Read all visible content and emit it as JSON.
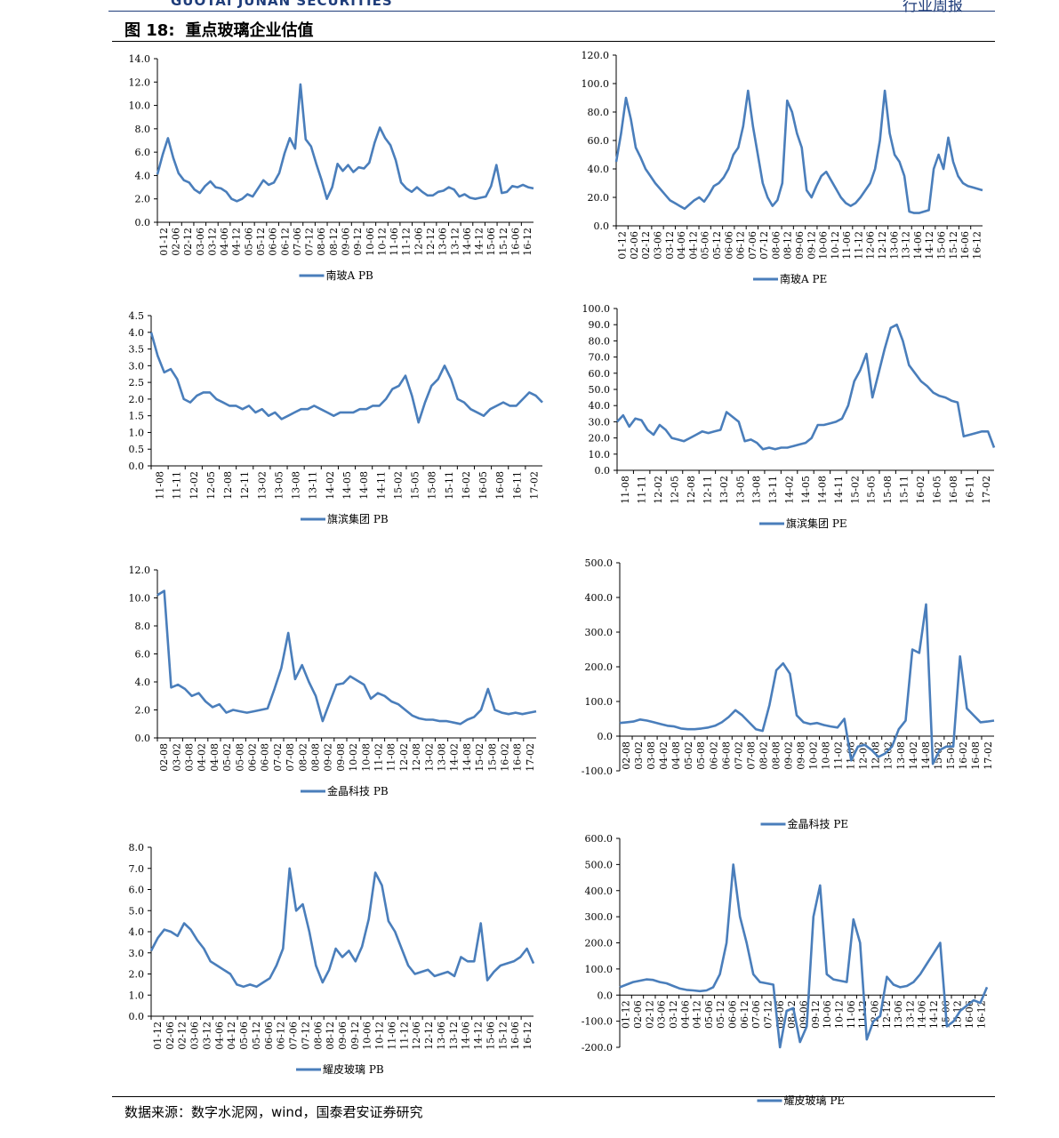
{
  "header": {
    "company_en": "GUOTAI JUNAN SECURITIES",
    "report_type": "行业周报",
    "logo_color": "#1f3d7a"
  },
  "figure": {
    "number": "图 18:",
    "title": "重点玻璃企业估值"
  },
  "source": "数据来源：数字水泥网，wind，国泰君安证券研究",
  "colors": {
    "series": "#4a7ebb",
    "axis": "#000000"
  },
  "chart_data": [
    {
      "type": "line",
      "legend": "南玻A PB",
      "x_ticks": [
        "01-12",
        "02-06",
        "02-12",
        "03-06",
        "03-12",
        "04-06",
        "04-12",
        "05-06",
        "05-12",
        "06-06",
        "06-12",
        "07-06",
        "07-12",
        "08-06",
        "08-12",
        "09-06",
        "09-12",
        "10-06",
        "10-12",
        "11-06",
        "11-12",
        "12-06",
        "12-12",
        "13-06",
        "13-12",
        "14-06",
        "14-12",
        "15-06",
        "15-12",
        "16-06",
        "16-12"
      ],
      "y_ticks": [
        "0.0",
        "2.0",
        "4.0",
        "6.0",
        "8.0",
        "10.0",
        "12.0",
        "14.0"
      ],
      "ylim": [
        0,
        14
      ],
      "series": [
        {
          "values": [
            4.1,
            5.8,
            7.2,
            5.5,
            4.2,
            3.6,
            3.4,
            2.8,
            2.5,
            3.1,
            3.5,
            3.0,
            2.9,
            2.6,
            2.0,
            1.8,
            2.0,
            2.4,
            2.2,
            2.9,
            3.6,
            3.2,
            3.4,
            4.2,
            5.9,
            7.2,
            6.3,
            11.8,
            7.1,
            6.5,
            5.0,
            3.6,
            2.0,
            3.0,
            5.0,
            4.4,
            4.9,
            4.3,
            4.7,
            4.6,
            5.1,
            6.8,
            8.1,
            7.2,
            6.6,
            5.3,
            3.4,
            2.9,
            2.6,
            3.0,
            2.6,
            2.3,
            2.3,
            2.6,
            2.7,
            3.0,
            2.8,
            2.2,
            2.4,
            2.1,
            2.0,
            2.1,
            2.2,
            3.1,
            4.9,
            2.5,
            2.6,
            3.1,
            3.0,
            3.2,
            3.0,
            2.9
          ]
        }
      ]
    },
    {
      "type": "line",
      "legend": "南玻A PE",
      "x_ticks": [
        "01-12",
        "02-06",
        "02-12",
        "03-06",
        "03-12",
        "04-06",
        "04-12",
        "05-06",
        "05-12",
        "06-06",
        "06-12",
        "07-06",
        "07-12",
        "08-06",
        "08-12",
        "09-06",
        "09-12",
        "10-06",
        "10-12",
        "11-06",
        "11-12",
        "12-06",
        "12-12",
        "13-06",
        "13-12",
        "14-06",
        "14-12",
        "15-06",
        "15-12",
        "16-06",
        "16-12"
      ],
      "y_ticks": [
        "0.0",
        "20.0",
        "40.0",
        "60.0",
        "80.0",
        "100.0",
        "120.0"
      ],
      "ylim": [
        0,
        120
      ],
      "series": [
        {
          "values": [
            45,
            65,
            90,
            75,
            55,
            48,
            40,
            35,
            30,
            26,
            22,
            18,
            16,
            14,
            12,
            15,
            18,
            20,
            17,
            22,
            28,
            30,
            34,
            40,
            50,
            55,
            70,
            95,
            70,
            50,
            30,
            20,
            14,
            18,
            30,
            88,
            80,
            65,
            55,
            25,
            20,
            28,
            35,
            38,
            32,
            26,
            20,
            16,
            14,
            16,
            20,
            25,
            30,
            40,
            60,
            95,
            65,
            50,
            45,
            35,
            10,
            9,
            9,
            10,
            11,
            40,
            50,
            40,
            62,
            45,
            35,
            30,
            28,
            27,
            26,
            25
          ]
        }
      ]
    },
    {
      "type": "line",
      "legend": "旗滨集团 PB",
      "x_ticks": [
        "11-08",
        "11-11",
        "12-02",
        "12-05",
        "12-08",
        "12-11",
        "13-02",
        "13-05",
        "13-08",
        "13-11",
        "14-02",
        "14-05",
        "14-08",
        "14-11",
        "15-02",
        "15-05",
        "15-08",
        "15-11",
        "16-02",
        "16-05",
        "16-08",
        "16-11",
        "17-02"
      ],
      "y_ticks": [
        "0.0",
        "0.5",
        "1.0",
        "1.5",
        "2.0",
        "2.5",
        "3.0",
        "3.5",
        "4.0",
        "4.5"
      ],
      "ylim": [
        0,
        4.5
      ],
      "series": [
        {
          "values": [
            4.0,
            3.3,
            2.8,
            2.9,
            2.6,
            2.0,
            1.9,
            2.1,
            2.2,
            2.2,
            2.0,
            1.9,
            1.8,
            1.8,
            1.7,
            1.8,
            1.6,
            1.7,
            1.5,
            1.6,
            1.4,
            1.5,
            1.6,
            1.7,
            1.7,
            1.8,
            1.7,
            1.6,
            1.5,
            1.6,
            1.6,
            1.6,
            1.7,
            1.7,
            1.8,
            1.8,
            2.0,
            2.3,
            2.4,
            2.7,
            2.1,
            1.3,
            1.9,
            2.4,
            2.6,
            3.0,
            2.6,
            2.0,
            1.9,
            1.7,
            1.6,
            1.5,
            1.7,
            1.8,
            1.9,
            1.8,
            1.8,
            2.0,
            2.2,
            2.1,
            1.9
          ]
        }
      ]
    },
    {
      "type": "line",
      "legend": "旗滨集团 PE",
      "x_ticks": [
        "11-08",
        "11-11",
        "12-02",
        "12-05",
        "12-08",
        "12-11",
        "13-02",
        "13-05",
        "13-08",
        "13-11",
        "14-02",
        "14-05",
        "14-08",
        "14-11",
        "15-02",
        "15-05",
        "15-08",
        "15-11",
        "16-02",
        "16-05",
        "16-08",
        "16-11",
        "17-02"
      ],
      "y_ticks": [
        "0.0",
        "10.0",
        "20.0",
        "30.0",
        "40.0",
        "50.0",
        "60.0",
        "70.0",
        "80.0",
        "90.0",
        "100.0"
      ],
      "ylim": [
        0,
        100
      ],
      "series": [
        {
          "values": [
            30,
            34,
            27,
            32,
            31,
            25,
            22,
            28,
            25,
            20,
            19,
            18,
            20,
            22,
            24,
            23,
            24,
            25,
            36,
            33,
            30,
            18,
            19,
            17,
            13,
            14,
            13,
            14,
            14,
            15,
            16,
            17,
            20,
            28,
            28,
            29,
            30,
            32,
            40,
            55,
            62,
            72,
            45,
            60,
            75,
            88,
            90,
            80,
            65,
            60,
            55,
            52,
            48,
            46,
            45,
            43,
            42,
            21,
            22,
            23,
            24,
            24,
            14
          ]
        }
      ]
    },
    {
      "type": "line",
      "legend": "金晶科技 PB",
      "x_ticks": [
        "02-08",
        "03-02",
        "03-08",
        "04-02",
        "04-08",
        "05-02",
        "05-08",
        "06-02",
        "06-08",
        "07-02",
        "07-08",
        "08-02",
        "08-08",
        "09-02",
        "09-08",
        "10-02",
        "10-08",
        "11-02",
        "11-08",
        "12-02",
        "12-08",
        "13-02",
        "13-08",
        "14-02",
        "14-08",
        "15-02",
        "15-08",
        "16-02",
        "16-08",
        "17-02"
      ],
      "y_ticks": [
        "0.0",
        "2.0",
        "4.0",
        "6.0",
        "8.0",
        "10.0",
        "12.0"
      ],
      "ylim": [
        0,
        12
      ],
      "series": [
        {
          "values": [
            10.2,
            10.5,
            3.6,
            3.8,
            3.5,
            3.0,
            3.2,
            2.6,
            2.2,
            2.4,
            1.8,
            2.0,
            1.9,
            1.8,
            1.9,
            2.0,
            2.1,
            3.5,
            5.0,
            7.5,
            4.2,
            5.2,
            4.0,
            3.0,
            1.2,
            2.5,
            3.8,
            3.9,
            4.4,
            4.1,
            3.8,
            2.8,
            3.2,
            3.0,
            2.6,
            2.4,
            2.0,
            1.6,
            1.4,
            1.3,
            1.3,
            1.2,
            1.2,
            1.1,
            1.0,
            1.3,
            1.5,
            2.0,
            3.5,
            2.0,
            1.8,
            1.7,
            1.8,
            1.7,
            1.8,
            1.9
          ]
        }
      ]
    },
    {
      "type": "line",
      "legend": "金晶科技 PE",
      "x_ticks": [
        "02-08",
        "03-02",
        "03-08",
        "04-02",
        "04-08",
        "05-02",
        "05-08",
        "06-02",
        "06-08",
        "07-02",
        "07-08",
        "08-02",
        "08-08",
        "09-02",
        "09-08",
        "10-02",
        "10-08",
        "11-02",
        "11-08",
        "12-02",
        "12-08",
        "13-02",
        "13-08",
        "14-02",
        "14-08",
        "15-02",
        "15-08",
        "16-02",
        "16-08",
        "17-02"
      ],
      "y_ticks": [
        "-100.0",
        "0.0",
        "100.0",
        "200.0",
        "300.0",
        "400.0",
        "500.0"
      ],
      "ylim": [
        -100,
        500
      ],
      "series": [
        {
          "values": [
            38,
            40,
            42,
            48,
            45,
            40,
            35,
            30,
            28,
            22,
            20,
            20,
            22,
            25,
            30,
            40,
            55,
            75,
            60,
            40,
            20,
            15,
            90,
            190,
            210,
            180,
            60,
            40,
            35,
            38,
            32,
            28,
            25,
            50,
            -70,
            -30,
            -25,
            -40,
            -60,
            -50,
            -30,
            20,
            45,
            250,
            240,
            380,
            -80,
            -40,
            -30,
            -30,
            230,
            80,
            60,
            40,
            42,
            45
          ]
        }
      ]
    },
    {
      "type": "line",
      "legend": "耀皮玻璃 PB",
      "x_ticks": [
        "01-12",
        "02-06",
        "02-12",
        "03-06",
        "03-12",
        "04-06",
        "04-12",
        "05-06",
        "05-12",
        "06-06",
        "06-12",
        "07-06",
        "07-12",
        "08-06",
        "08-12",
        "09-06",
        "09-12",
        "10-06",
        "10-12",
        "11-06",
        "11-12",
        "12-06",
        "12-12",
        "13-06",
        "13-12",
        "14-06",
        "14-12",
        "15-06",
        "15-12",
        "16-06",
        "16-12"
      ],
      "y_ticks": [
        "0.0",
        "1.0",
        "2.0",
        "3.0",
        "4.0",
        "5.0",
        "6.0",
        "7.0",
        "8.0"
      ],
      "ylim": [
        0,
        8
      ],
      "series": [
        {
          "values": [
            3.1,
            3.7,
            4.1,
            4.0,
            3.8,
            4.4,
            4.1,
            3.6,
            3.2,
            2.6,
            2.4,
            2.2,
            2.0,
            1.5,
            1.4,
            1.5,
            1.4,
            1.6,
            1.8,
            2.4,
            3.2,
            7.0,
            5.0,
            5.3,
            4.0,
            2.4,
            1.6,
            2.2,
            3.2,
            2.8,
            3.1,
            2.6,
            3.3,
            4.6,
            6.8,
            6.2,
            4.5,
            4.0,
            3.2,
            2.4,
            2.0,
            2.1,
            2.2,
            1.9,
            2.0,
            2.1,
            1.9,
            2.8,
            2.6,
            2.6,
            4.4,
            1.7,
            2.1,
            2.4,
            2.5,
            2.6,
            2.8,
            3.2,
            2.5
          ]
        }
      ]
    },
    {
      "type": "line",
      "legend": "耀皮玻璃 PE",
      "x_ticks": [
        "01-12",
        "02-06",
        "02-12",
        "03-06",
        "03-12",
        "04-06",
        "04-12",
        "05-06",
        "05-12",
        "06-06",
        "06-12",
        "07-06",
        "07-12",
        "08-06",
        "08-12",
        "09-06",
        "09-12",
        "10-06",
        "10-12",
        "11-06",
        "11-12",
        "12-06",
        "12-12",
        "13-06",
        "13-12",
        "14-06",
        "14-12",
        "15-06",
        "15-12",
        "16-06",
        "16-12"
      ],
      "y_ticks": [
        "-200.0",
        "-100.0",
        "0.0",
        "100.0",
        "200.0",
        "300.0",
        "400.0",
        "500.0",
        "600.0"
      ],
      "ylim": [
        -200,
        600
      ],
      "series": [
        {
          "values": [
            30,
            40,
            50,
            55,
            60,
            58,
            50,
            45,
            35,
            25,
            20,
            18,
            15,
            18,
            30,
            80,
            200,
            500,
            300,
            200,
            80,
            50,
            45,
            40,
            -200,
            -60,
            -50,
            -180,
            -120,
            300,
            420,
            80,
            60,
            55,
            50,
            290,
            200,
            -170,
            -100,
            -80,
            70,
            40,
            30,
            35,
            50,
            80,
            120,
            160,
            200,
            -120,
            -100,
            -60,
            -40,
            -20,
            -30,
            30
          ]
        }
      ]
    }
  ]
}
